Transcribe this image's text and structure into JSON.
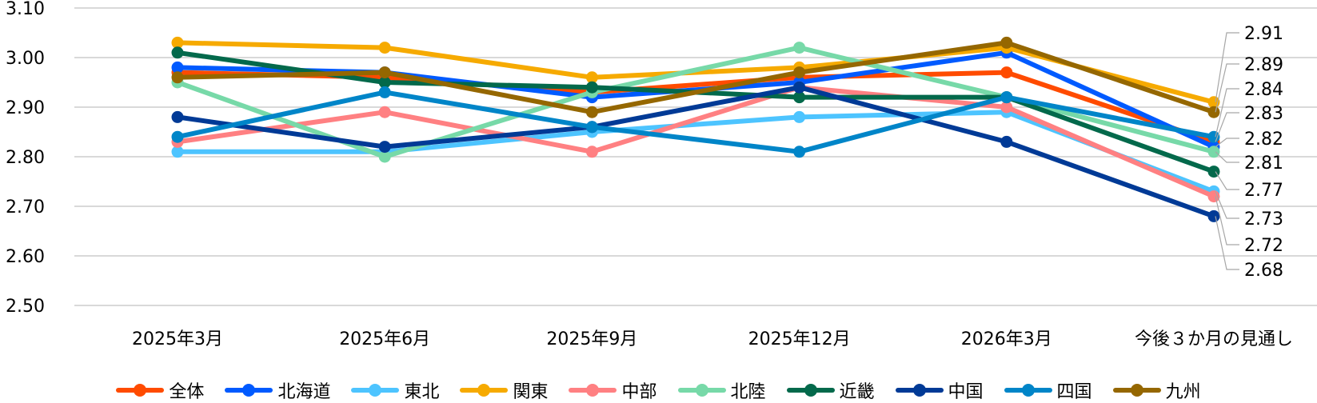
{
  "chart_data": {
    "type": "line",
    "categories": [
      "2025年3月",
      "2025年6月",
      "2025年9月",
      "2025年12月",
      "2026年3月",
      "今後３か月の見通し"
    ],
    "ylim": [
      2.5,
      3.1
    ],
    "yticks": [
      "2.50",
      "2.60",
      "2.70",
      "2.80",
      "2.90",
      "3.00",
      "3.10"
    ],
    "grid": true,
    "legend_position": "bottom",
    "last_point_labels": true,
    "series": [
      {
        "name": "全体",
        "color": "#FF4B00",
        "values": [
          2.97,
          2.96,
          2.93,
          2.96,
          2.97,
          2.83
        ],
        "label": "2.83"
      },
      {
        "name": "北海道",
        "color": "#005AFF",
        "values": [
          2.98,
          2.97,
          2.92,
          2.95,
          3.01,
          2.82
        ],
        "label": "2.82"
      },
      {
        "name": "東北",
        "color": "#4DC4FF",
        "values": [
          2.81,
          2.81,
          2.85,
          2.88,
          2.89,
          2.73
        ],
        "label": "2.73"
      },
      {
        "name": "関東",
        "color": "#F6AA00",
        "values": [
          3.03,
          3.02,
          2.96,
          2.98,
          3.02,
          2.91
        ],
        "label": "2.91"
      },
      {
        "name": "中部",
        "color": "#FF8082",
        "values": [
          2.83,
          2.89,
          2.81,
          2.94,
          2.9,
          2.72
        ],
        "label": "2.72"
      },
      {
        "name": "北陸",
        "color": "#77D9A8",
        "values": [
          2.95,
          2.8,
          2.93,
          3.02,
          2.92,
          2.81
        ],
        "label": "2.81"
      },
      {
        "name": "近畿",
        "color": "#03694B",
        "values": [
          3.01,
          2.95,
          2.94,
          2.92,
          2.92,
          2.77
        ],
        "label": "2.77"
      },
      {
        "name": "中国",
        "color": "#003A96",
        "values": [
          2.88,
          2.82,
          2.86,
          2.94,
          2.83,
          2.68
        ],
        "label": "2.68"
      },
      {
        "name": "四国",
        "color": "#0085C8",
        "values": [
          2.84,
          2.93,
          2.86,
          2.81,
          2.92,
          2.84
        ],
        "label": "2.84"
      },
      {
        "name": "九州",
        "color": "#956700",
        "values": [
          2.96,
          2.97,
          2.89,
          2.97,
          3.03,
          2.89
        ],
        "label": "2.89"
      }
    ]
  }
}
